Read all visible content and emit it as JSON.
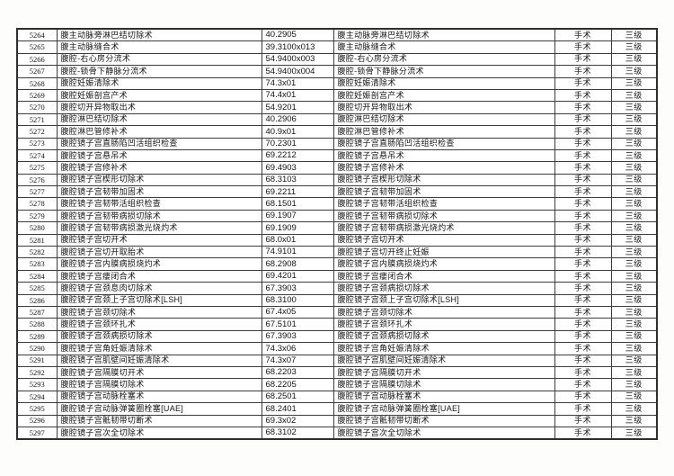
{
  "table": {
    "category_label": "手术",
    "level_label": "三级",
    "rows": [
      [
        "5264",
        "腹主动脉旁淋巴结切除术",
        "40.2905",
        "腹主动脉旁淋巴结切除术",
        "手术",
        "三级"
      ],
      [
        "5265",
        "腹主动脉缝合术",
        "39.3100x013",
        "腹主动脉缝合术",
        "手术",
        "三级"
      ],
      [
        "5266",
        "腹腔-右心房分流术",
        "54.9400x003",
        "腹腔-右心房分流术",
        "手术",
        "三级"
      ],
      [
        "5267",
        "腹腔-锁骨下静脉分流术",
        "54.9400x004",
        "腹腔-锁骨下静脉分流术",
        "手术",
        "三级"
      ],
      [
        "5268",
        "腹腔妊娠清除术",
        "74.3x01",
        "腹腔妊娠清除术",
        "手术",
        "三级"
      ],
      [
        "5269",
        "腹腔妊娠剖宫产术",
        "74.4x01",
        "腹腔妊娠剖宫产术",
        "手术",
        "三级"
      ],
      [
        "5270",
        "腹腔切开异物取出术",
        "54.9201",
        "腹腔切开异物取出术",
        "手术",
        "三级"
      ],
      [
        "5271",
        "腹腔淋巴结切除术",
        "40.2906",
        "腹腔淋巴结切除术",
        "手术",
        "三级"
      ],
      [
        "5272",
        "腹腔淋巴管修补术",
        "40.9x01",
        "腹腔淋巴管修补术",
        "手术",
        "三级"
      ],
      [
        "5273",
        "腹腔镜子宫直肠陷凹活组织检查",
        "70.2301",
        "腹腔镜子宫直肠陷凹活组织检查",
        "手术",
        "三级"
      ],
      [
        "5274",
        "腹腔镜子宫悬吊术",
        "69.2212",
        "腹腔镜子宫悬吊术",
        "手术",
        "三级"
      ],
      [
        "5275",
        "腹腔镜子宫修补术",
        "69.4903",
        "腹腔镜子宫修补术",
        "手术",
        "三级"
      ],
      [
        "5276",
        "腹腔镜子宫楔形切除术",
        "68.3103",
        "腹腔镜子宫楔形切除术",
        "手术",
        "三级"
      ],
      [
        "5277",
        "腹腔镜子宫韧带加固术",
        "69.2211",
        "腹腔镜子宫韧带加固术",
        "手术",
        "三级"
      ],
      [
        "5278",
        "腹腔镜子宫韧带活组织检查",
        "68.1501",
        "腹腔镜子宫韧带活组织检查",
        "手术",
        "三级"
      ],
      [
        "5279",
        "腹腔镜子宫韧带病损切除术",
        "69.1907",
        "腹腔镜子宫韧带病损切除术",
        "手术",
        "三级"
      ],
      [
        "5280",
        "腹腔镜子宫韧带病损激光烧灼术",
        "69.1909",
        "腹腔镜子宫韧带病损激光烧灼术",
        "手术",
        "三级"
      ],
      [
        "5281",
        "腹腔镜子宫切开术",
        "68.0x01",
        "腹腔镜子宫切开术",
        "手术",
        "三级"
      ],
      [
        "5282",
        "腹腔镜子宫切开取胎术",
        "74.9101",
        "腹腔镜子宫切开终止妊娠",
        "手术",
        "三级"
      ],
      [
        "5283",
        "腹腔镜子宫内膜病损烧灼术",
        "68.2908",
        "腹腔镜子宫内膜病损烧灼术",
        "手术",
        "三级"
      ],
      [
        "5284",
        "腹腔镜子宫瘘闭合术",
        "69.4201",
        "腹腔镜子宫瘘闭合术",
        "手术",
        "三级"
      ],
      [
        "5285",
        "腹腔镜子宫颈息肉切除术",
        "67.3903",
        "腹腔镜子宫颈病损切除术",
        "手术",
        "三级"
      ],
      [
        "5286",
        "腹腔镜子宫颈上子宫切除术[LSH]",
        "68.3100",
        "腹腔镜子宫颈上子宫切除术[LSH]",
        "手术",
        "三级"
      ],
      [
        "5287",
        "腹腔镜子宫颈切除术",
        "67.4x05",
        "腹腔镜子宫颈切除术",
        "手术",
        "三级"
      ],
      [
        "5288",
        "腹腔镜子宫颈环扎术",
        "67.5101",
        "腹腔镜子宫颈环扎术",
        "手术",
        "三级"
      ],
      [
        "5289",
        "腹腔镜子宫颈病损切除术",
        "67.3903",
        "腹腔镜子宫颈病损切除术",
        "手术",
        "三级"
      ],
      [
        "5290",
        "腹腔镜子宫角妊娠清除术",
        "74.3x06",
        "腹腔镜子宫角妊娠清除术",
        "手术",
        "三级"
      ],
      [
        "5291",
        "腹腔镜子宫肌壁间妊娠清除术",
        "74.3x07",
        "腹腔镜子宫肌壁间妊娠清除术",
        "手术",
        "三级"
      ],
      [
        "5292",
        "腹腔镜子宫隔膜切开术",
        "68.2203",
        "腹腔镜子宫隔膜切开术",
        "手术",
        "三级"
      ],
      [
        "5293",
        "腹腔镜子宫隔膜切除术",
        "68.2205",
        "腹腔镜子宫隔膜切除术",
        "手术",
        "三级"
      ],
      [
        "5294",
        "腹腔镜子宫动脉栓塞术",
        "68.2501",
        "腹腔镜子宫动脉栓塞术",
        "手术",
        "三级"
      ],
      [
        "5295",
        "腹腔镜子宫动脉弹簧圈栓塞[UAE]",
        "68.2401",
        "腹腔镜子宫动脉弹簧圈栓塞[UAE]",
        "手术",
        "三级"
      ],
      [
        "5296",
        "腹腔镜子宫骶韧带切断术",
        "69.3x02",
        "腹腔镜子宫骶韧带切断术",
        "手术",
        "三级"
      ],
      [
        "5297",
        "腹腔镜子宫次全切除术",
        "68.3102",
        "腹腔镜子宫次全切除术",
        "手术",
        "三级"
      ]
    ]
  },
  "colors": {
    "page_background": "#fdfdfc",
    "table_border": "#2e2e2e",
    "cell_border": "#3d3d3d",
    "text": "#141414"
  }
}
